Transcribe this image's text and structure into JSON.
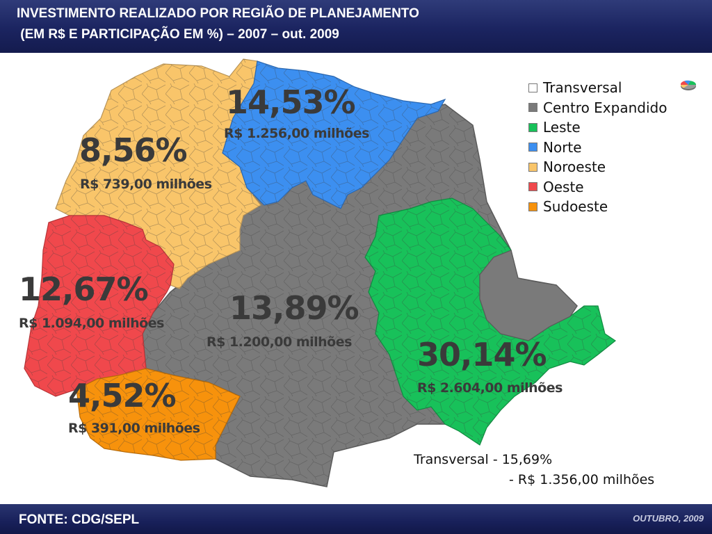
{
  "header": {
    "title_line1": "INVESTIMENTO REALIZADO POR REGIÃO DE PLANEJAMENTO",
    "title_line2": " (EM R$ E PARTICIPAÇÃO EM %) – 2007 – out. 2009"
  },
  "regions": {
    "norte": {
      "pct": "14,53%",
      "amount": "R$ 1.256,00 milhões",
      "color": "#3c8ff0"
    },
    "noroeste": {
      "pct": "8,56%",
      "amount": "R$ 739,00 milhões",
      "color": "#f9c56a"
    },
    "oeste": {
      "pct": "12,67%",
      "amount": "R$ 1.094,00 milhões",
      "color": "#f0484c"
    },
    "centro": {
      "pct": "13,89%",
      "amount": "R$ 1.200,00 milhões",
      "color": "#7a7a7a"
    },
    "leste": {
      "pct": "30,14%",
      "amount": "R$ 2.604,00 milhões",
      "color": "#18c15a"
    },
    "sudoeste": {
      "pct": "4,52%",
      "amount": "R$ 391,00 milhões",
      "color": "#f7920c"
    }
  },
  "legend": [
    {
      "label": "Transversal",
      "color": "#ffffff"
    },
    {
      "label": "Centro Expandido",
      "color": "#7a7a7a"
    },
    {
      "label": "Leste",
      "color": "#18c15a"
    },
    {
      "label": "Norte",
      "color": "#3c8ff0"
    },
    {
      "label": "Noroeste",
      "color": "#f9c56a"
    },
    {
      "label": "Oeste",
      "color": "#f0484c"
    },
    {
      "label": "Sudoeste",
      "color": "#f7920c"
    }
  ],
  "transversal": {
    "line1": "Transversal - 15,69%",
    "line2": "- R$ 1.356,00 milhões"
  },
  "footer": {
    "source": "FONTE: CDG/SEPL",
    "date": "OUTUBRO, 2009"
  }
}
